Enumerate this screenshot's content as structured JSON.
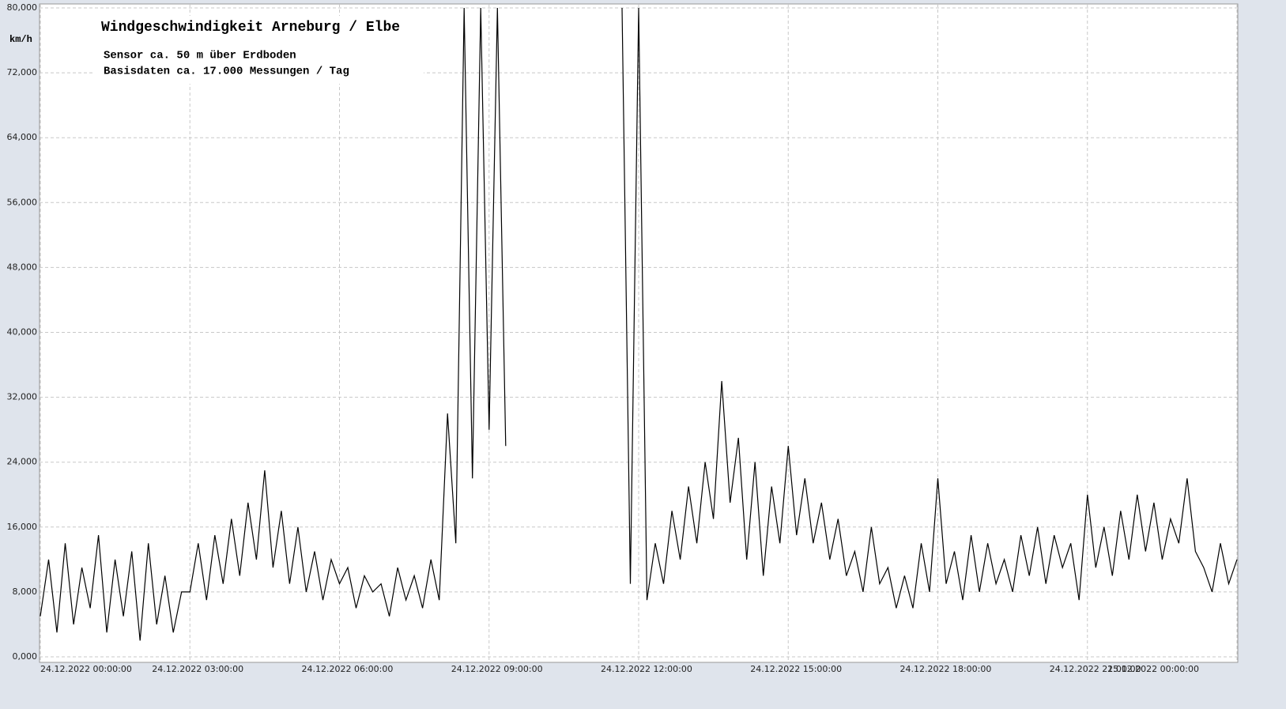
{
  "chart_data": {
    "type": "line",
    "title": "Windgeschwindigkeit  Arneburg / Elbe",
    "subtitle": [
      "Sensor ca. 50 m über Erdboden",
      "Basisdaten ca. 17.000 Messungen / Tag"
    ],
    "y_label": "km/h",
    "x": [
      0,
      10,
      20,
      30,
      40,
      50,
      60,
      70,
      80,
      90,
      100,
      110,
      120,
      130,
      140,
      150,
      160,
      170,
      180,
      190,
      200,
      210,
      220,
      230,
      240,
      250,
      260,
      270,
      280,
      290,
      300,
      310,
      320,
      330,
      340,
      350,
      360,
      370,
      380,
      390,
      400,
      410,
      420,
      430,
      440,
      450,
      460,
      470,
      480,
      490,
      500,
      510,
      520,
      530,
      540,
      550,
      560,
      570,
      580,
      590,
      600,
      610,
      620,
      630,
      640,
      650,
      660,
      670,
      680,
      690,
      700,
      710,
      720,
      730,
      740,
      750,
      760,
      770,
      780,
      790,
      800,
      810,
      820,
      830,
      840,
      850,
      860,
      870,
      880,
      890,
      900,
      910,
      920,
      930,
      940,
      950,
      960,
      970,
      980,
      990,
      1000,
      1010,
      1020,
      1030,
      1040,
      1050,
      1060,
      1070,
      1080,
      1090,
      1100,
      1110,
      1120,
      1130,
      1140,
      1150,
      1160,
      1170,
      1180,
      1190,
      1200,
      1210,
      1220,
      1230,
      1240,
      1250,
      1260,
      1270,
      1280,
      1290,
      1300,
      1310,
      1320,
      1330,
      1340,
      1350,
      1360,
      1370,
      1380,
      1390,
      1400,
      1410,
      1420,
      1430,
      1440
    ],
    "series": [
      {
        "name": "km/h",
        "color": "#000000",
        "values": [
          5,
          12,
          3,
          14,
          4,
          11,
          6,
          15,
          3,
          12,
          5,
          13,
          2,
          14,
          4,
          10,
          3,
          8,
          8,
          14,
          7,
          15,
          9,
          17,
          10,
          19,
          12,
          23,
          11,
          18,
          9,
          16,
          8,
          13,
          7,
          12,
          9,
          11,
          6,
          10,
          8,
          9,
          5,
          11,
          7,
          10,
          6,
          12,
          7,
          30,
          14,
          80,
          22,
          80,
          28,
          80,
          26,
          null,
          null,
          null,
          null,
          null,
          null,
          null,
          null,
          null,
          null,
          null,
          null,
          null,
          80,
          9,
          80,
          7,
          14,
          9,
          18,
          12,
          21,
          14,
          24,
          17,
          34,
          19,
          27,
          12,
          24,
          10,
          21,
          14,
          26,
          15,
          22,
          14,
          19,
          12,
          17,
          10,
          13,
          8,
          16,
          9,
          11,
          6,
          10,
          6,
          14,
          8,
          22,
          9,
          13,
          7,
          15,
          8,
          14,
          9,
          12,
          8,
          15,
          10,
          16,
          9,
          15,
          11,
          14,
          7,
          20,
          11,
          16,
          10,
          18,
          12,
          20,
          13,
          19,
          12,
          17,
          14,
          22,
          13,
          11,
          8,
          14,
          9,
          12
        ]
      }
    ],
    "xlim": [
      0,
      1440
    ],
    "xticks": [
      {
        "value": 0,
        "label": "24.12.2022  00:00:00"
      },
      {
        "value": 180,
        "label": "24.12.2022  03:00:00"
      },
      {
        "value": 360,
        "label": "24.12.2022  06:00:00"
      },
      {
        "value": 540,
        "label": "24.12.2022  09:00:00"
      },
      {
        "value": 720,
        "label": "24.12.2022  12:00:00"
      },
      {
        "value": 900,
        "label": "24.12.2022  15:00:00"
      },
      {
        "value": 1080,
        "label": "24.12.2022  18:00:00"
      },
      {
        "value": 1260,
        "label": "24.12.2022  21:00:00"
      },
      {
        "value": 1440,
        "label": "25.12.2022  00:00:00"
      }
    ],
    "ylim": [
      0,
      80
    ],
    "yticks": [
      {
        "value": 0,
        "label": "0,000"
      },
      {
        "value": 8,
        "label": "8,000"
      },
      {
        "value": 16,
        "label": "16,000"
      },
      {
        "value": 24,
        "label": "24,000"
      },
      {
        "value": 32,
        "label": "32,000"
      },
      {
        "value": 40,
        "label": "40,000"
      },
      {
        "value": 48,
        "label": "48,000"
      },
      {
        "value": 56,
        "label": "56,000"
      },
      {
        "value": 64,
        "label": "64,000"
      },
      {
        "value": 72,
        "label": "72,000"
      },
      {
        "value": 80,
        "label": "80,000"
      }
    ],
    "grid": true
  }
}
